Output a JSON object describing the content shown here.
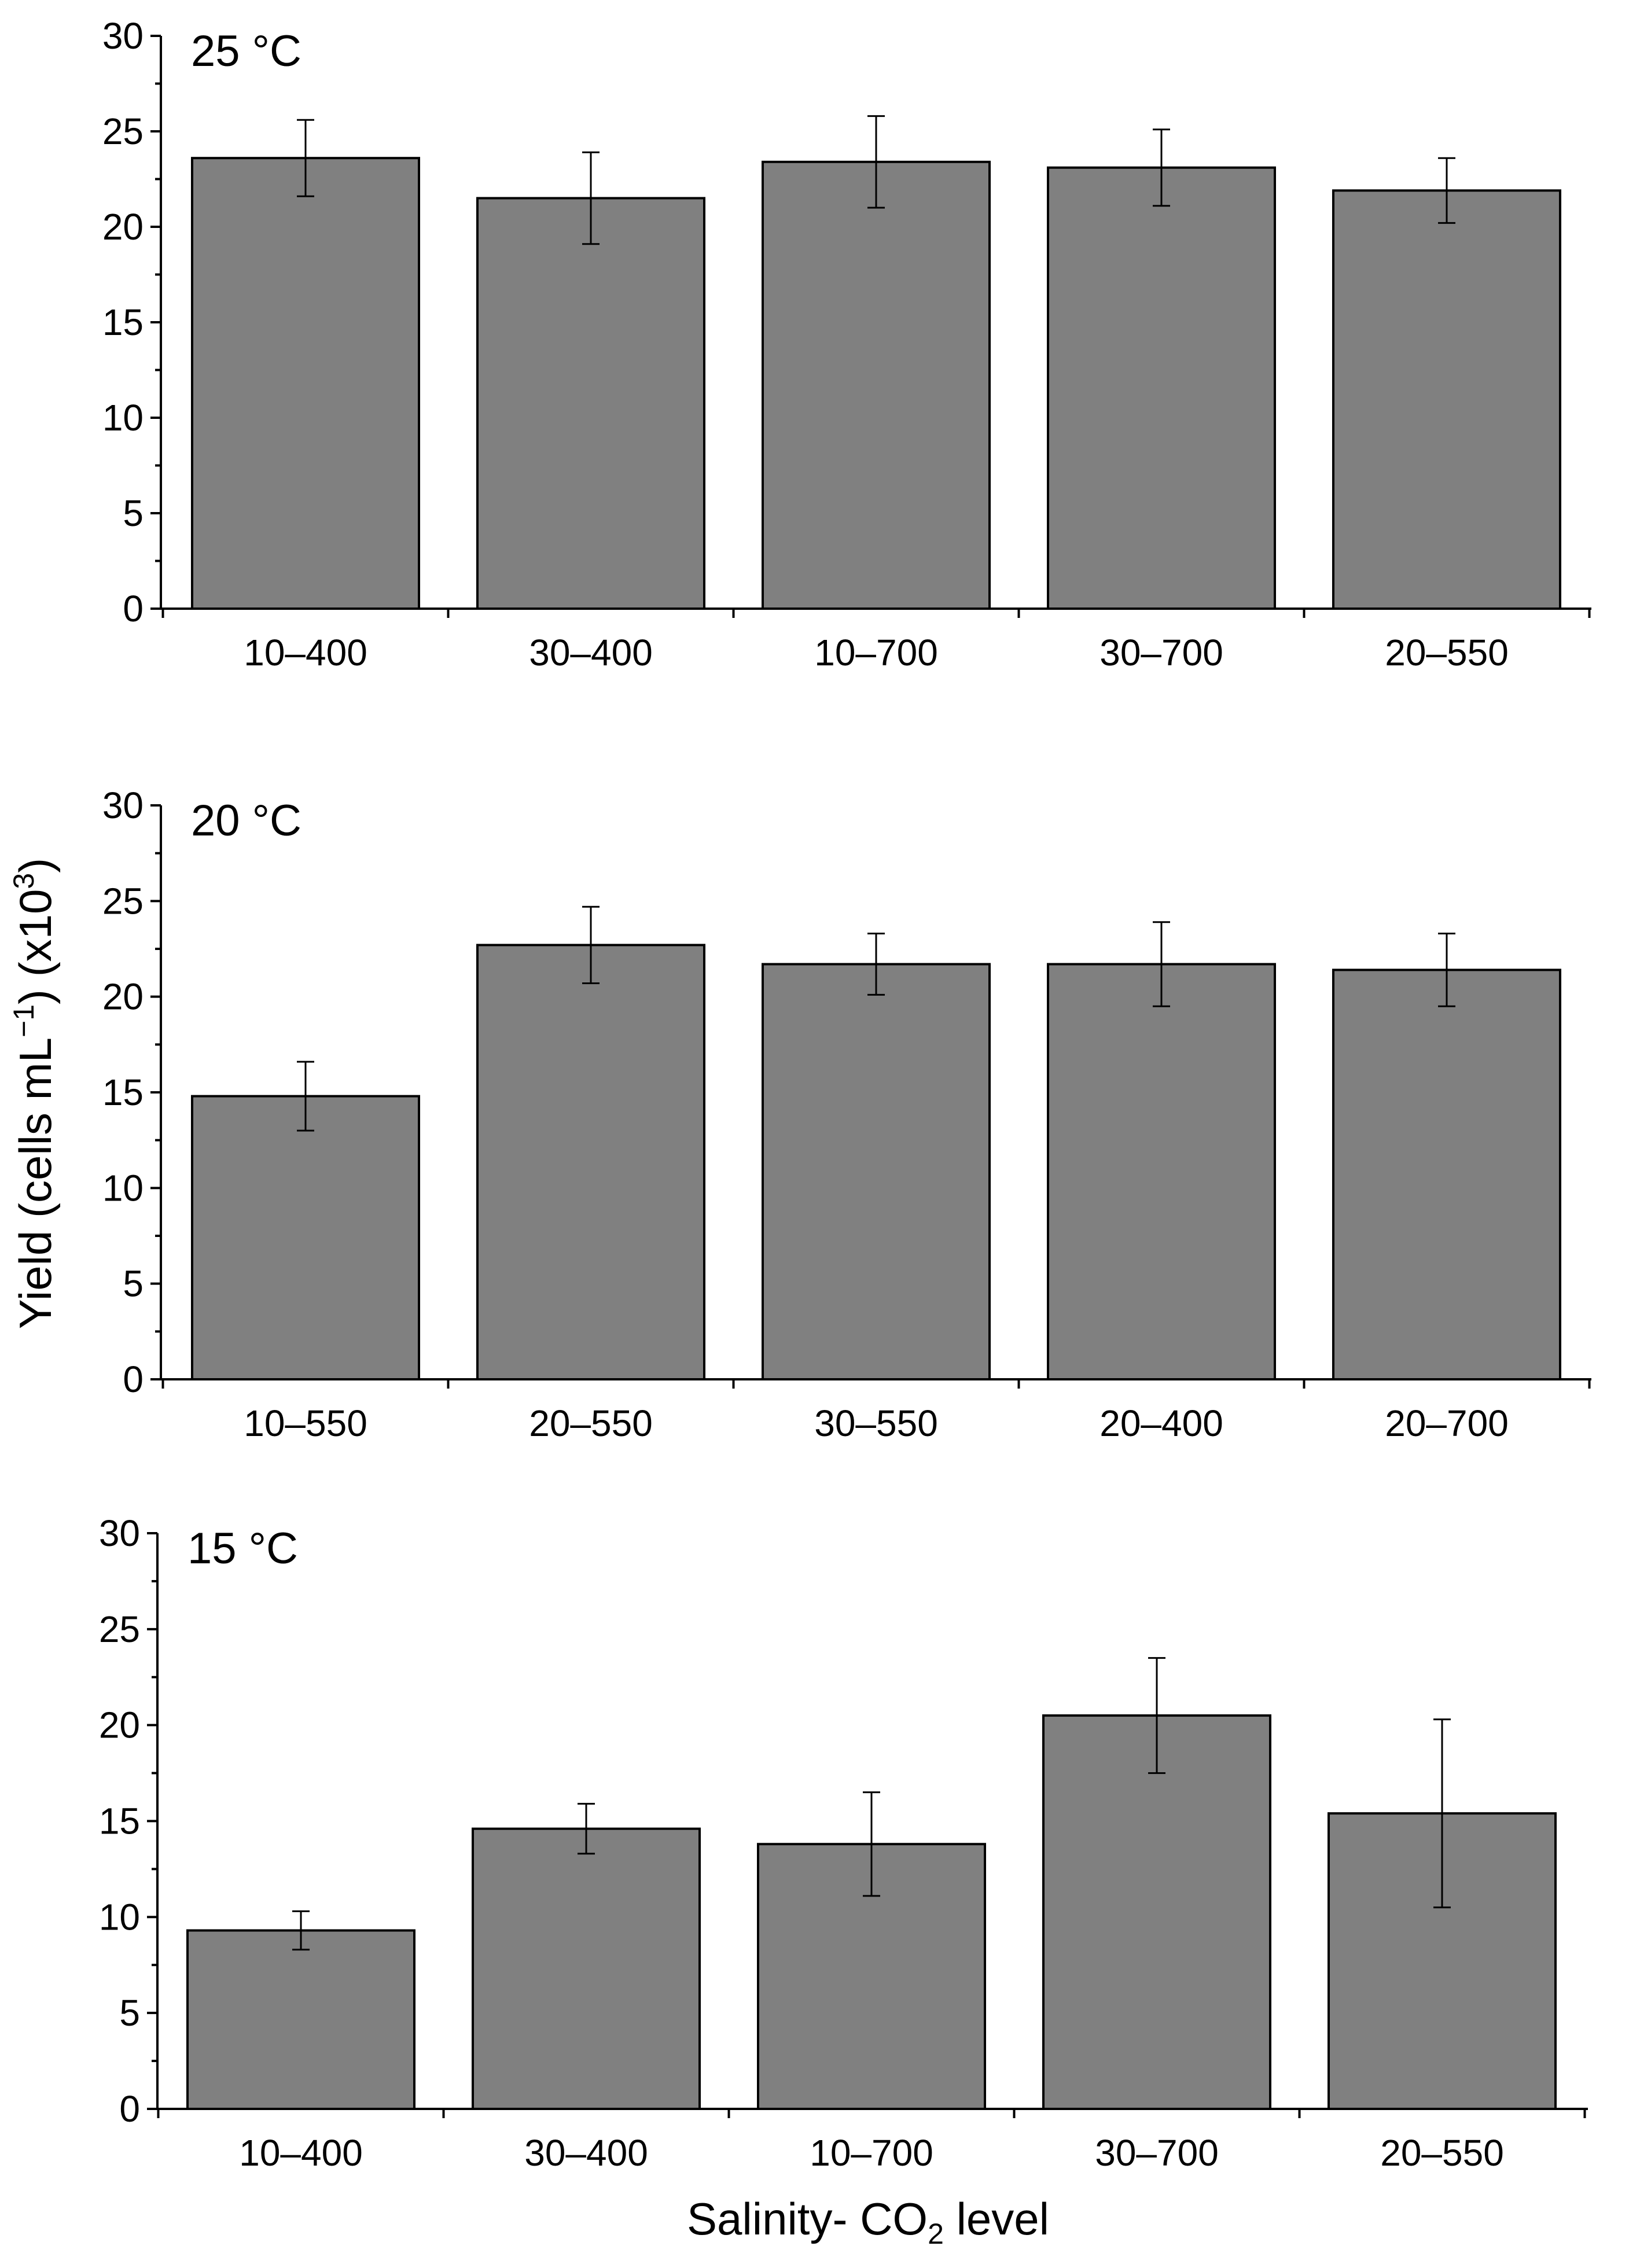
{
  "figure": {
    "ylabel_main": "Yield (cells mL",
    "ylabel_sup1": "−1",
    "ylabel_mid": ") (x10",
    "ylabel_sup2": "3",
    "ylabel_end": ")",
    "xlabel_main": "Salinity- CO",
    "xlabel_sub": "2",
    "xlabel_end": " level"
  },
  "colors": {
    "bar_fill": "#808080",
    "bar_stroke": "#000000",
    "axis": "#000000"
  },
  "chart_data": [
    {
      "type": "bar",
      "title": "25 °C",
      "categories": [
        "10–400",
        "30–400",
        "10–700",
        "30–700",
        "20–550"
      ],
      "values": [
        23.6,
        21.5,
        23.4,
        23.1,
        21.9
      ],
      "errors": [
        2.0,
        2.4,
        2.4,
        2.0,
        1.7
      ],
      "ylim": [
        0,
        30
      ],
      "yticks": [
        "0",
        "5",
        "10",
        "15",
        "20",
        "25",
        "30"
      ]
    },
    {
      "type": "bar",
      "title": "20 °C",
      "categories": [
        "10–550",
        "20–550",
        "30–550",
        "20–400",
        "20–700"
      ],
      "values": [
        14.8,
        22.7,
        21.7,
        21.7,
        21.4
      ],
      "errors": [
        1.8,
        2.0,
        1.6,
        2.2,
        1.9
      ],
      "ylim": [
        0,
        30
      ],
      "yticks": [
        "0",
        "5",
        "10",
        "15",
        "20",
        "25",
        "30"
      ]
    },
    {
      "type": "bar",
      "title": "15 °C",
      "categories": [
        "10–400",
        "30–400",
        "10–700",
        "30–700",
        "20–550"
      ],
      "values": [
        9.3,
        14.6,
        13.8,
        20.5,
        15.4
      ],
      "errors": [
        1.0,
        1.3,
        2.7,
        3.0,
        4.9
      ],
      "ylim": [
        0,
        30
      ],
      "yticks": [
        "0",
        "5",
        "10",
        "15",
        "20",
        "25",
        "30"
      ]
    }
  ]
}
